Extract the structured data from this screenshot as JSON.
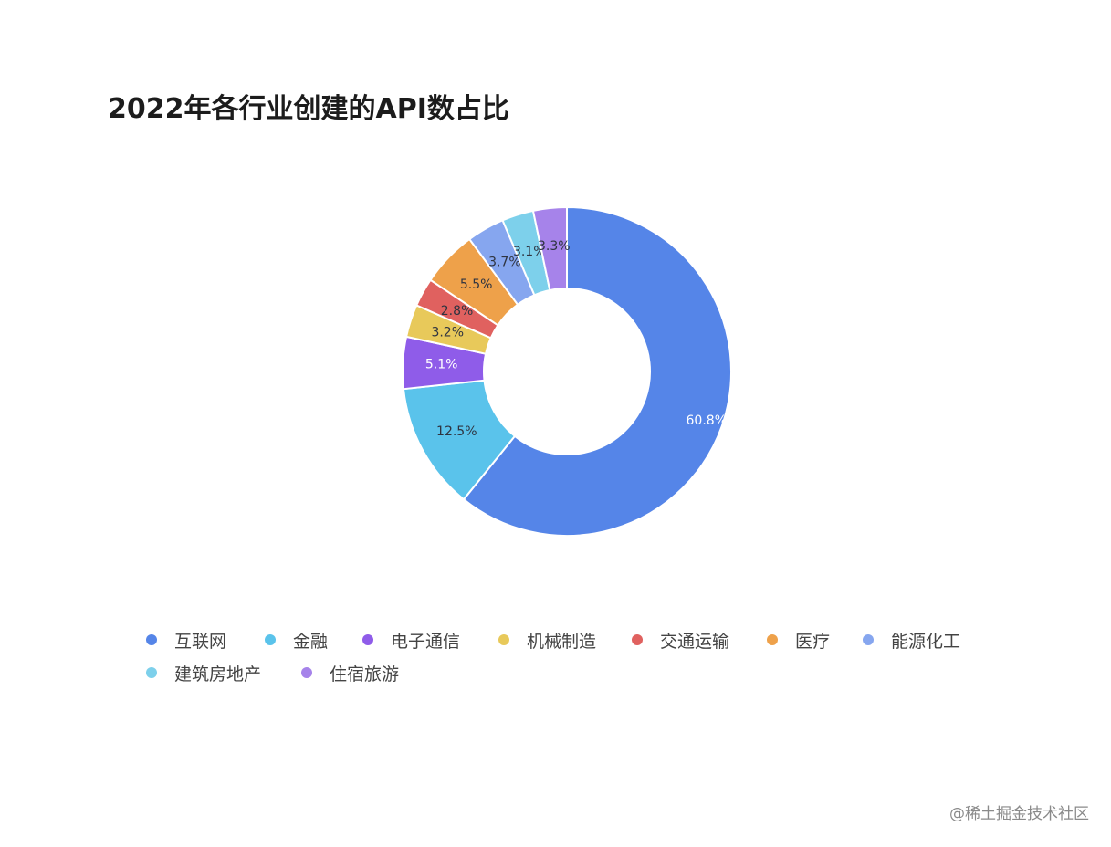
{
  "chart_data": {
    "type": "pie",
    "title": "2022年各行业创建的API数占比",
    "donut": true,
    "label_format": "percent",
    "legend_position": "bottom-left",
    "slices": [
      {
        "name": "互联网",
        "value": 60.8,
        "label": "60.8%",
        "color": "#5585e8"
      },
      {
        "name": "金融",
        "value": 12.5,
        "label": "12.5%",
        "color": "#5ac3eb"
      },
      {
        "name": "电子通信",
        "value": 5.1,
        "label": "5.1%",
        "color": "#8f5ce9"
      },
      {
        "name": "机械制造",
        "value": 3.2,
        "label": "3.2%",
        "color": "#e8c95a"
      },
      {
        "name": "交通运输",
        "value": 2.8,
        "label": "2.8%",
        "color": "#e0615f"
      },
      {
        "name": "医疗",
        "value": 5.5,
        "label": "5.5%",
        "color": "#eea14a"
      },
      {
        "name": "能源化工",
        "value": 3.7,
        "label": "3.7%",
        "color": "#86a6ef"
      },
      {
        "name": "建筑房地产",
        "value": 3.1,
        "label": "3.1%",
        "color": "#7dd0eb"
      },
      {
        "name": "住宿旅游",
        "value": 3.3,
        "label": "3.3%",
        "color": "#a683ea"
      }
    ]
  },
  "watermark": "@稀土掘金技术社区"
}
